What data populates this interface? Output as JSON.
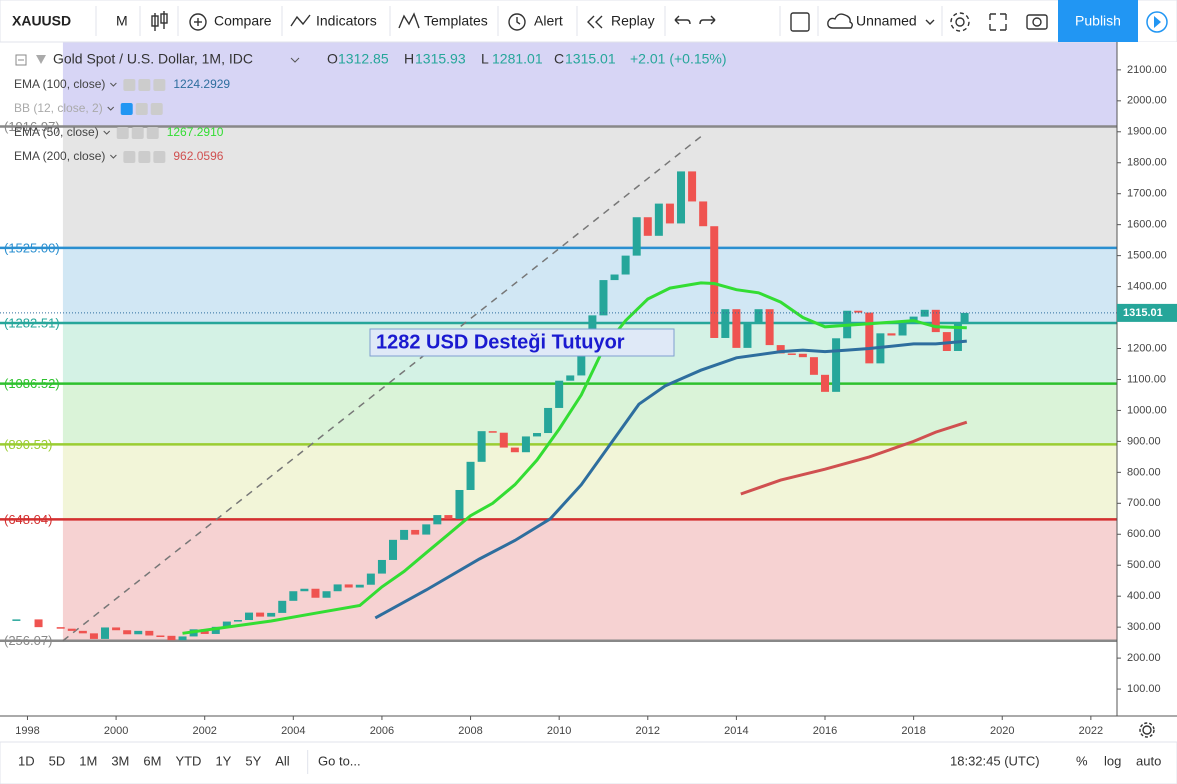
{
  "toolbar": {
    "symbol": "XAUUSD",
    "interval": "M",
    "compare": "Compare",
    "indicators": "Indicators",
    "templates": "Templates",
    "alert": "Alert",
    "replay": "Replay",
    "layout": "Unnamed",
    "publish": "Publish"
  },
  "header": {
    "title": "Gold Spot / U.S. Dollar, 1M, IDC",
    "ohlc": [
      {
        "label": "O",
        "value": "1312.85"
      },
      {
        "label": "H",
        "value": "1315.93"
      },
      {
        "label": "L",
        "value": "1281.01"
      },
      {
        "label": "C",
        "value": "1315.01"
      }
    ],
    "change": "+2.01 (+0.15%)"
  },
  "chart_data": {
    "type": "candlestick",
    "xlim": [
      1997.38,
      2022.59
    ],
    "xticks": [
      1998,
      2000,
      2002,
      2004,
      2006,
      2008,
      2010,
      2012,
      2014,
      2016,
      2018,
      2020,
      2022
    ],
    "ylim": [
      13,
      2190
    ],
    "yticks": [
      {
        "value": 100,
        "label": "100.00"
      },
      {
        "value": 200,
        "label": "200.00"
      },
      {
        "value": 300,
        "label": "300.00"
      },
      {
        "value": 400,
        "label": "400.00"
      },
      {
        "value": 500,
        "label": "500.00"
      },
      {
        "value": 600,
        "label": "600.00"
      },
      {
        "value": 700,
        "label": "700.00"
      },
      {
        "value": 800,
        "label": "800.00"
      },
      {
        "value": 900,
        "label": "900.00"
      },
      {
        "value": 1000,
        "label": "1000.00"
      },
      {
        "value": 1100,
        "label": "1100.00"
      },
      {
        "value": 1200,
        "label": "1200.00"
      },
      {
        "value": 1300,
        "label": "1300.00"
      },
      {
        "value": 1400,
        "label": "1400.00"
      },
      {
        "value": 1500,
        "label": "1500.00"
      },
      {
        "value": 1600,
        "label": "1600.00"
      },
      {
        "value": 1700,
        "label": "1700.00"
      },
      {
        "value": 1800,
        "label": "1800.00"
      },
      {
        "value": 1900,
        "label": "1900.00"
      },
      {
        "value": 2000,
        "label": "2000.00"
      },
      {
        "value": 2100,
        "label": "2100.00"
      }
    ],
    "up_color": "#26a69a",
    "down_color": "#ef5350",
    "price": {
      "x": [
        1997.75,
        1998.25,
        1998.75,
        1999,
        1999.25,
        1999.5,
        1999.75,
        2000,
        2000.25,
        2000.5,
        2000.75,
        2001,
        2001.25,
        2001.5,
        2001.75,
        2002,
        2002.25,
        2002.5,
        2002.75,
        2003,
        2003.25,
        2003.5,
        2003.75,
        2004,
        2004.25,
        2004.5,
        2004.75,
        2005,
        2005.25,
        2005.5,
        2005.75,
        2006,
        2006.25,
        2006.5,
        2006.75,
        2007,
        2007.25,
        2007.5,
        2007.75,
        2008,
        2008.25,
        2008.5,
        2008.75,
        2009,
        2009.25,
        2009.5,
        2009.75,
        2010,
        2010.25,
        2010.5,
        2010.75,
        2011,
        2011.25,
        2011.5,
        2011.75,
        2012,
        2012.25,
        2012.5,
        2012.75,
        2013,
        2013.25,
        2013.5,
        2013.75,
        2014,
        2014.25,
        2014.5,
        2014.75,
        2015,
        2015.25,
        2015.5,
        2015.75,
        2016,
        2016.25,
        2016.5,
        2016.75,
        2017,
        2017.25,
        2017.5,
        2017.75,
        2018,
        2018.25,
        2018.5,
        2018.75,
        2019,
        2019.15
      ],
      "values": [
        325,
        300,
        295,
        288,
        280,
        262,
        299,
        290,
        277,
        288,
        273,
        272,
        258,
        270,
        293,
        278,
        301,
        318,
        323,
        347,
        334,
        346,
        385,
        416,
        424,
        395,
        416,
        438,
        428,
        437,
        473,
        517,
        582,
        614,
        599,
        632,
        662,
        650,
        743,
        834,
        933,
        928,
        880,
        865,
        916,
        927,
        1008,
        1096,
        1113,
        1244,
        1307,
        1421,
        1439,
        1500,
        1624,
        1564,
        1668,
        1604,
        1772,
        1675,
        1595,
        1234,
        1327,
        1202,
        1284,
        1327,
        1211,
        1184,
        1183,
        1172,
        1115,
        1060,
        1233,
        1322,
        1316,
        1152,
        1249,
        1242,
        1280,
        1303,
        1325,
        1253,
        1192,
        1282,
        1315
      ]
    },
    "series": [
      {
        "name": "EMA (100, close)",
        "legend_value": "1224.2929",
        "color": "#2e6e9e",
        "x": [
          2005.85,
          2007,
          2008.2,
          2009,
          2009.8,
          2010.5,
          2010.9,
          2011.4,
          2011.8,
          2012.4,
          2013.2,
          2014,
          2015,
          2015.5,
          2016,
          2016.5,
          2017,
          2018,
          2018.5,
          2019.2
        ],
        "values": [
          330,
          420,
          520,
          580,
          650,
          760,
          840,
          940,
          1020,
          1080,
          1130,
          1170,
          1190,
          1195,
          1190,
          1195,
          1200,
          1215,
          1215,
          1224
        ]
      },
      {
        "name": "EMA (50, close)",
        "legend_value": "1267.2910",
        "color": "#33dd33",
        "x": [
          2001.5,
          2002.5,
          2003.5,
          2004.5,
          2005.5,
          2006,
          2006.5,
          2007,
          2007.5,
          2008,
          2008.5,
          2009,
          2009.5,
          2010,
          2010.5,
          2011,
          2011.5,
          2012,
          2012.5,
          2013.2,
          2013.5,
          2014,
          2014.5,
          2015,
          2015.5,
          2016,
          2016.5,
          2017,
          2017.5,
          2018,
          2018.5,
          2019.2
        ],
        "values": [
          280,
          300,
          320,
          345,
          370,
          430,
          480,
          540,
          600,
          660,
          700,
          760,
          840,
          940,
          1050,
          1200,
          1290,
          1360,
          1395,
          1412,
          1410,
          1390,
          1380,
          1350,
          1300,
          1270,
          1275,
          1280,
          1285,
          1290,
          1270,
          1267
        ]
      },
      {
        "name": "EMA (200, close)",
        "legend_value": "962.0596",
        "color": "#d05050",
        "x": [
          2014.1,
          2015,
          2016,
          2017,
          2018,
          2018.5,
          2019.2
        ],
        "values": [
          730,
          775,
          810,
          850,
          900,
          930,
          962
        ]
      }
    ],
    "hidden_indicator": "BB (12, close, 2)",
    "fib_levels": [
      {
        "value": 256.07,
        "label": "(256.07)",
        "color": "#888888",
        "fill": "#f6d2d2"
      },
      {
        "value": 648.04,
        "label": "(648.04)",
        "color": "#d32f2f",
        "fill": "#f2f5d8"
      },
      {
        "value": 890.53,
        "label": "(890.53)",
        "color": "#9acd32",
        "fill": "#daf3d8"
      },
      {
        "value": 1086.52,
        "label": "(1086.52)",
        "color": "#2ec12e",
        "fill": "#d4f2e5"
      },
      {
        "value": 1282.51,
        "label": "(1282.51)",
        "color": "#26a69a",
        "fill": "#d1e7f4"
      },
      {
        "value": 1525.0,
        "label": "(1525.00)",
        "color": "#2a8fd0",
        "fill": "#e5e5e5"
      },
      {
        "value": 1916.97,
        "label": "(1916.97)",
        "color": "#888888",
        "fill": "#d7d5f5"
      }
    ],
    "fib_start": 1998.8,
    "trendline": {
      "x": [
        1998.8,
        2013.3
      ],
      "values": [
        256.07,
        1896
      ]
    },
    "annotation": "1282 USD Desteği Tutuyor",
    "last_price": 1315.01
  },
  "bottom_bar": {
    "ranges": [
      "1D",
      "5D",
      "1M",
      "3M",
      "6M",
      "YTD",
      "1Y",
      "5Y",
      "All"
    ],
    "goto": "Go to...",
    "clock": "18:32:45 (UTC)",
    "percent": "%",
    "log": "log",
    "auto": "auto"
  }
}
